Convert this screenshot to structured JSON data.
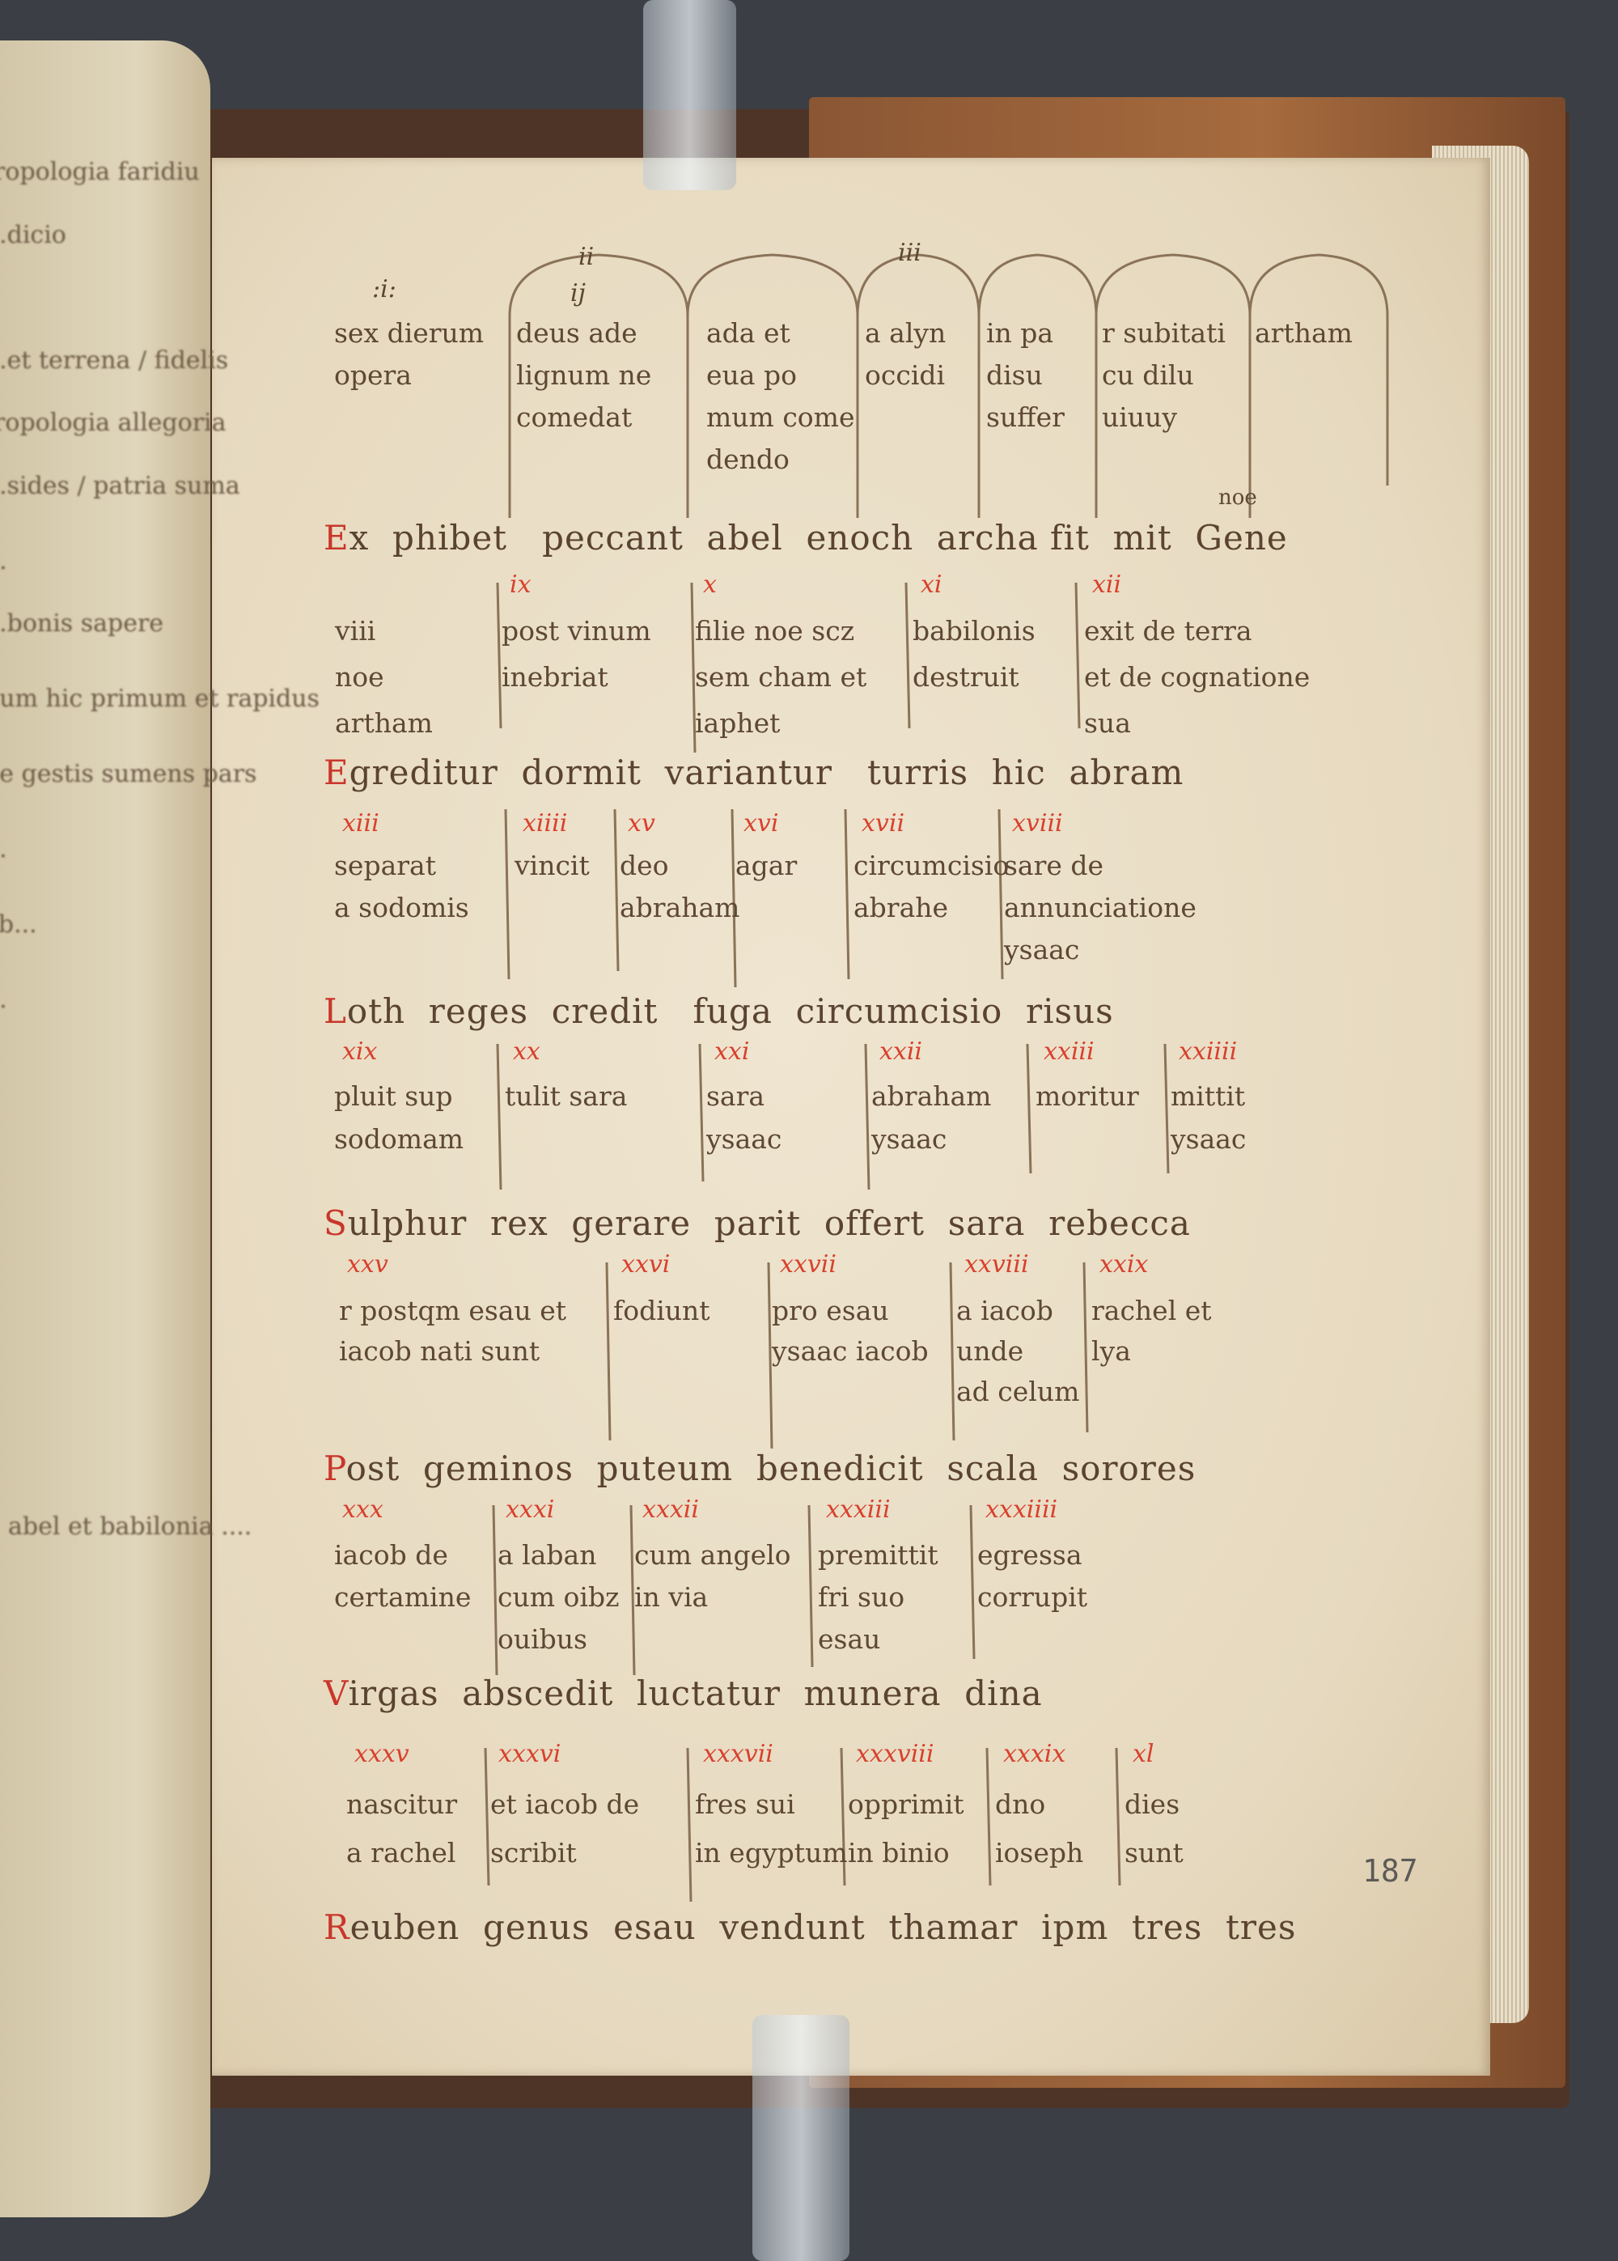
{
  "left_page": {
    "lines": [
      "tropologia faridiu",
      "...dicio",
      "...et terrena / fidelis",
      "tropologia   allegoria",
      "...sides / patria suma",
      "...",
      "...bonis sapere",
      "dum hic primum et rapidus",
      "de gestis sumens pars",
      "...",
      "ab...",
      "...",
      "abel et babilonia ...."
    ]
  },
  "top_labels": {
    "col1": ":i:",
    "col2": "ij",
    "arch2": "ii",
    "arch4": "iii"
  },
  "rows": [
    {
      "header": "",
      "cells": [
        {
          "num": "",
          "lines": [
            "sex dierum",
            "opera"
          ]
        },
        {
          "num": "",
          "lines": [
            "deus ade",
            "lignum ne",
            "comedat"
          ]
        },
        {
          "num": "",
          "lines": [
            "ada et",
            "eua po",
            "mum come",
            "dendo"
          ]
        },
        {
          "num": "",
          "lines": [
            "a alyn",
            "occidi"
          ]
        },
        {
          "num": "",
          "lines": [
            "in pa",
            "disu",
            "suffer"
          ]
        },
        {
          "num": "",
          "lines": [
            "r subitati",
            "cu dilu",
            "uiuuy"
          ]
        },
        {
          "num": "",
          "lines": [
            "artham"
          ]
        }
      ]
    },
    {
      "header": "Ex  phibet   peccant  abel  enoch  archa fit  mit  Gene",
      "header_sup": "noe",
      "cells": [
        {
          "num": "",
          "lines": [
            "viii",
            "noe",
            "artham"
          ]
        },
        {
          "num": "ix",
          "lines": [
            "post vinum",
            "inebriat"
          ]
        },
        {
          "num": "x",
          "lines": [
            "filie noe scz",
            "sem cham et",
            "iaphet"
          ]
        },
        {
          "num": "xi",
          "lines": [
            "babilonis",
            "destruit"
          ]
        },
        {
          "num": "xii",
          "lines": [
            "exit de terra",
            "et de cognatione",
            "sua"
          ]
        }
      ]
    },
    {
      "header": "Egreditur  dormit  variantur   turris  hic  abram",
      "cells": [
        {
          "num": "xiii",
          "lines": [
            "separat",
            "a sodomis"
          ]
        },
        {
          "num": "xiiii",
          "lines": [
            "vincit"
          ]
        },
        {
          "num": "xv",
          "lines": [
            "deo",
            "abraham"
          ]
        },
        {
          "num": "xvi",
          "lines": [
            "agar"
          ]
        },
        {
          "num": "xvii",
          "lines": [
            "circumcisio",
            "abrahe"
          ]
        },
        {
          "num": "xviii",
          "lines": [
            "sare de",
            "annunciatione",
            "ysaac"
          ]
        }
      ]
    },
    {
      "header": "Loth  reges  credit   fuga  circumcisio  risus",
      "cells": [
        {
          "num": "xix",
          "lines": [
            "pluit sup",
            "sodomam"
          ]
        },
        {
          "num": "xx",
          "lines": [
            "tulit sara"
          ]
        },
        {
          "num": "xxi",
          "lines": [
            "sara",
            "ysaac"
          ]
        },
        {
          "num": "xxii",
          "lines": [
            "abraham",
            "ysaac"
          ]
        },
        {
          "num": "xxiii",
          "lines": [
            "moritur"
          ]
        },
        {
          "num": "xxiiii",
          "lines": [
            "mittit",
            "ysaac"
          ]
        }
      ]
    },
    {
      "header": "Sulphur  rex  gerare  parit  offert  sara  rebecca",
      "cells": [
        {
          "num": "xxv",
          "lines": [
            "r postqm esau et",
            "iacob nati sunt"
          ]
        },
        {
          "num": "xxvi",
          "lines": [
            "fodiunt"
          ]
        },
        {
          "num": "xxvii",
          "lines": [
            "pro esau",
            "ysaac iacob"
          ]
        },
        {
          "num": "xxviii",
          "lines": [
            "a iacob",
            "unde",
            "ad celum"
          ]
        },
        {
          "num": "xxix",
          "lines": [
            "rachel et",
            "lya"
          ]
        }
      ]
    },
    {
      "header": "Post  geminos  puteum  benedicit  scala  sorores",
      "cells": [
        {
          "num": "xxx",
          "lines": [
            "iacob de",
            "certamine"
          ]
        },
        {
          "num": "xxxi",
          "lines": [
            "a laban",
            "cum oibz",
            "ouibus"
          ]
        },
        {
          "num": "xxxii",
          "lines": [
            "cum angelo",
            "in via"
          ]
        },
        {
          "num": "xxxiii",
          "lines": [
            "premittit",
            "fri suo",
            "esau"
          ]
        },
        {
          "num": "xxxiiii",
          "lines": [
            "egressa",
            "corrupit"
          ]
        }
      ]
    },
    {
      "header": "Virgas  abscedit  luctatur  munera  dina",
      "cells": [
        {
          "num": "xxxv",
          "lines": [
            "nascitur",
            "a rachel"
          ]
        },
        {
          "num": "xxxvi",
          "lines": [
            "et iacob de",
            "scribit"
          ]
        },
        {
          "num": "xxxvii",
          "lines": [
            "fres sui",
            "in egyptum"
          ]
        },
        {
          "num": "xxxviii",
          "lines": [
            "opprimit",
            "in binio"
          ]
        },
        {
          "num": "xxxix",
          "lines": [
            "dno",
            "ioseph"
          ]
        },
        {
          "num": "xl",
          "lines": [
            "dies",
            "sunt"
          ]
        }
      ]
    },
    {
      "header": "Reuben  genus  esau  vendunt  thamar  ipm  tres  tres",
      "cells": []
    }
  ],
  "folio_number": "187",
  "colors": {
    "ink": "#5b4632",
    "rubric": "#d8402c",
    "parchment": "#e8dcc4",
    "background": "#3b3f45"
  }
}
